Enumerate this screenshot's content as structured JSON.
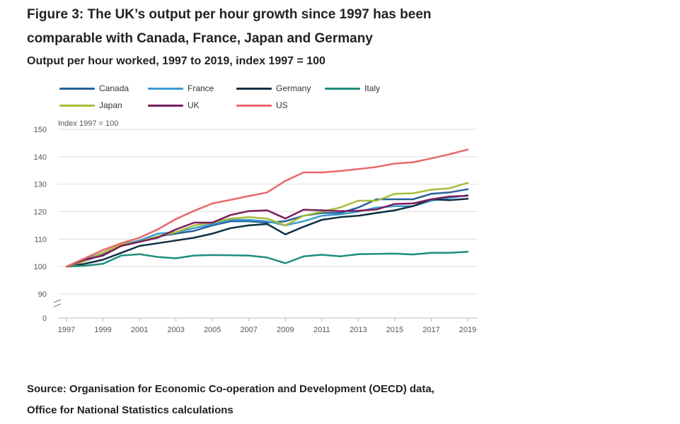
{
  "figure": {
    "title": "Figure 3: The UK’s output per hour growth since 1997 has been comparable with Canada, France, Japan and Germany",
    "subtitle": "Output per hour worked, 1997 to 2019, index 1997 = 100",
    "source": "Source: Organisation for Economic Co-operation and Development (OECD) data, Office for National Statistics calculations"
  },
  "chart_data": {
    "type": "line",
    "title": "Output per hour worked, 1997 to 2019, index 1997 = 100",
    "ylabel": "Index 1997 = 100",
    "xlabel": "",
    "x": [
      1997,
      1998,
      1999,
      2000,
      2001,
      2002,
      2003,
      2004,
      2005,
      2006,
      2007,
      2008,
      2009,
      2010,
      2011,
      2012,
      2013,
      2014,
      2015,
      2016,
      2017,
      2018,
      2019
    ],
    "x_tick_labels": [
      "1997",
      "1999",
      "2001",
      "2003",
      "2005",
      "2007",
      "2009",
      "2011",
      "2013",
      "2015",
      "2017",
      "2019"
    ],
    "y_tick_labels": [
      "150",
      "140",
      "130",
      "120",
      "110",
      "100",
      "90",
      "0"
    ],
    "y_ticks": [
      150,
      140,
      130,
      120,
      110,
      100,
      90
    ],
    "ylim": [
      87,
      150
    ],
    "y_axis_break": true,
    "grid": true,
    "legend_position": "top-left",
    "series": [
      {
        "name": "Canada",
        "color": "#27609a",
        "values": [
          100,
          102.0,
          104.5,
          107.5,
          109.0,
          111.0,
          112.0,
          113.0,
          115.0,
          116.5,
          116.5,
          116.0,
          116.5,
          118.5,
          119.5,
          119.5,
          121.5,
          124.5,
          124.5,
          124.5,
          126.5,
          127.0,
          128.2
        ]
      },
      {
        "name": "France",
        "color": "#3c9bd0",
        "values": [
          100,
          102.5,
          105.0,
          108.0,
          109.5,
          112.0,
          112.5,
          114.0,
          115.5,
          117.0,
          117.0,
          116.5,
          115.0,
          116.5,
          118.5,
          119.0,
          120.0,
          121.5,
          122.0,
          122.0,
          124.0,
          125.0,
          126.0
        ]
      },
      {
        "name": "Germany",
        "color": "#0e2f44",
        "values": [
          100,
          101.0,
          102.5,
          105.0,
          107.5,
          108.5,
          109.5,
          110.5,
          112.0,
          114.0,
          115.0,
          115.5,
          111.7,
          114.5,
          117.0,
          118.0,
          118.5,
          119.5,
          120.5,
          122.0,
          124.5,
          124.2,
          124.7
        ]
      },
      {
        "name": "Italy",
        "color": "#1f8d7d",
        "values": [
          100,
          100.3,
          101.0,
          104.0,
          104.5,
          103.5,
          103.0,
          104.0,
          104.2,
          104.1,
          104.0,
          103.3,
          101.2,
          103.7,
          104.3,
          103.7,
          104.5,
          104.6,
          104.7,
          104.4,
          105.0,
          105.0,
          105.4
        ]
      },
      {
        "name": "Japan",
        "color": "#a8bd3a",
        "values": [
          100,
          102.0,
          105.0,
          108.0,
          109.0,
          111.0,
          112.5,
          115.0,
          116.0,
          117.5,
          118.0,
          117.5,
          115.0,
          118.5,
          120.0,
          121.5,
          124.0,
          124.0,
          126.5,
          126.7,
          128.0,
          128.5,
          130.5
        ]
      },
      {
        "name": "UK",
        "color": "#7a1e5e",
        "values": [
          100,
          102.5,
          104.0,
          107.5,
          109.0,
          110.5,
          113.5,
          116.0,
          116.0,
          118.8,
          120.2,
          120.5,
          117.5,
          120.7,
          120.5,
          120.2,
          120.3,
          120.8,
          122.8,
          123.0,
          124.5,
          125.5,
          125.8
        ]
      },
      {
        "name": "US",
        "color": "#e8676b",
        "values": [
          100,
          103.0,
          106.0,
          108.5,
          110.5,
          113.5,
          117.3,
          120.3,
          123.0,
          124.3,
          125.7,
          127.0,
          131.2,
          134.3,
          134.3,
          134.8,
          135.5,
          136.3,
          137.5,
          138.0,
          139.4,
          140.9,
          142.6
        ]
      }
    ]
  }
}
